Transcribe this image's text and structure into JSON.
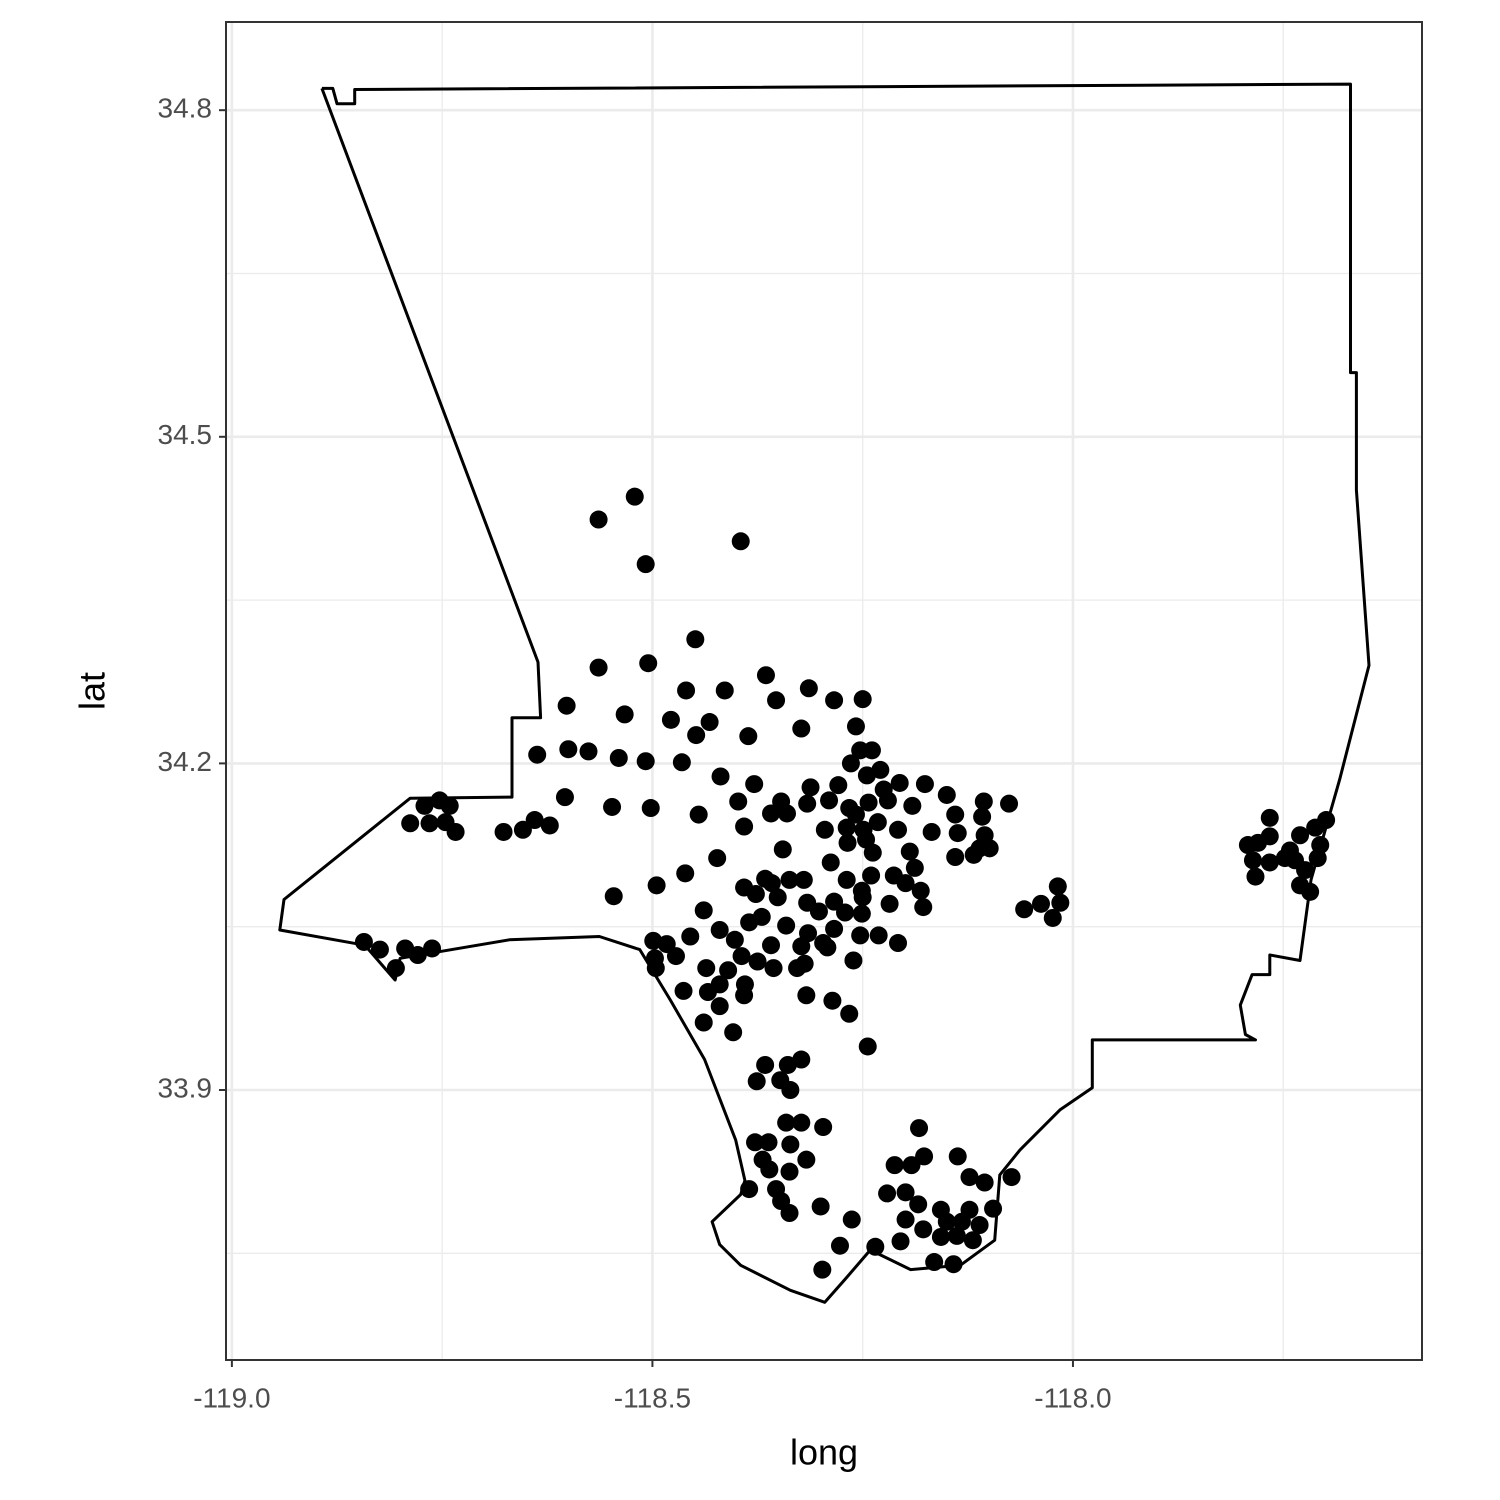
{
  "chart_data": {
    "type": "scatter",
    "x_label": "long",
    "y_label": "lat",
    "xlim": [
      -119.007,
      -117.585
    ],
    "ylim": [
      33.652,
      34.881
    ],
    "xticks": [
      {
        "value": -119.0,
        "label": "-119.0"
      },
      -118.5,
      {
        "value": -118.0,
        "label": "-118.0"
      }
    ],
    "yticks": [
      33.9,
      34.2,
      34.5,
      34.8
    ],
    "xminor": [
      -118.75,
      -118.25,
      -117.75
    ],
    "yminor": [
      33.75,
      34.05,
      34.35,
      34.65
    ],
    "grid": true,
    "color": "#000000",
    "outline_color": "#000000",
    "outline": {
      "x": [
        -118.893,
        -118.88,
        -118.875,
        -118.854,
        -118.854,
        -117.67,
        -117.67,
        -117.663,
        -117.663,
        -117.648,
        -117.683,
        -117.717,
        -117.73,
        -117.766,
        -117.766,
        -117.787,
        -117.801,
        -117.795,
        -117.783,
        -117.977,
        -117.977,
        -118.015,
        -118.063,
        -118.087,
        -118.093,
        -118.134,
        -118.193,
        -118.241,
        -118.271,
        -118.295,
        -118.336,
        -118.395,
        -118.42,
        -118.429,
        -118.395,
        -118.39,
        -118.401,
        -118.438,
        -118.479,
        -118.515,
        -118.563,
        -118.67,
        -118.8,
        -118.806,
        -118.842,
        -118.943,
        -118.938,
        -118.788,
        -118.667,
        -118.667,
        -118.633,
        -118.636,
        -118.893
      ],
      "y": [
        34.82,
        34.82,
        34.806,
        34.806,
        34.819,
        34.824,
        34.559,
        34.559,
        34.451,
        34.29,
        34.185,
        34.093,
        34.019,
        34.024,
        34.006,
        34.006,
        33.978,
        33.951,
        33.946,
        33.946,
        33.902,
        33.882,
        33.845,
        33.822,
        33.762,
        33.739,
        33.735,
        33.753,
        33.726,
        33.705,
        33.716,
        33.739,
        33.758,
        33.779,
        33.804,
        33.817,
        33.854,
        33.928,
        33.983,
        34.029,
        34.041,
        34.038,
        34.021,
        34.001,
        34.033,
        34.047,
        34.075,
        34.168,
        34.169,
        34.242,
        34.242,
        34.293,
        34.82
      ]
    },
    "x": [
      -118.521,
      -118.564,
      -118.508,
      -118.395,
      -118.449,
      -118.564,
      -118.505,
      -118.365,
      -118.46,
      -118.414,
      -118.314,
      -118.353,
      -118.284,
      -118.25,
      -118.602,
      -118.533,
      -118.478,
      -118.432,
      -118.323,
      -118.258,
      -118.448,
      -118.386,
      -118.6,
      -118.576,
      -118.637,
      -118.54,
      -118.508,
      -118.465,
      -118.253,
      -118.239,
      -118.264,
      -118.229,
      -118.419,
      -118.379,
      -118.312,
      -118.279,
      -118.206,
      -118.176,
      -118.604,
      -118.398,
      -118.347,
      -118.316,
      -118.29,
      -118.266,
      -118.243,
      -118.22,
      -118.548,
      -118.502,
      -118.15,
      -118.106,
      -118.076,
      -118.14,
      -118.445,
      -118.359,
      -118.34,
      -118.191,
      -118.108,
      -118.64,
      -118.677,
      -118.654,
      -118.622,
      -118.391,
      -118.295,
      -118.269,
      -118.249,
      -118.232,
      -118.208,
      -118.168,
      -118.137,
      -118.105,
      -118.268,
      -118.246,
      -118.345,
      -118.111,
      -118.14,
      -118.118,
      -118.099,
      -118.238,
      -118.194,
      -118.423,
      -118.288,
      -118.461,
      -118.24,
      -118.188,
      -118.366,
      -118.32,
      -118.269,
      -118.213,
      -118.495,
      -118.391,
      -118.358,
      -118.337,
      -118.251,
      -118.199,
      -118.181,
      -118.546,
      -118.377,
      -118.351,
      -118.018,
      -118.316,
      -118.284,
      -118.25,
      -118.218,
      -118.178,
      -118.058,
      -118.038,
      -118.015,
      -118.024,
      -118.439,
      -118.37,
      -118.302,
      -118.271,
      -118.251,
      -118.42,
      -118.385,
      -118.341,
      -118.315,
      -118.284,
      -118.253,
      -118.231,
      -118.208,
      -118.455,
      -118.499,
      -118.483,
      -118.402,
      -118.359,
      -118.323,
      -118.297,
      -118.497,
      -118.472,
      -118.394,
      -118.375,
      -118.319,
      -118.292,
      -118.261,
      -118.496,
      -118.436,
      -118.41,
      -118.356,
      -118.328,
      -118.42,
      -118.39,
      -118.463,
      -118.434,
      -118.391,
      -118.317,
      -118.286,
      -118.42,
      -118.266,
      -118.439,
      -118.404,
      -118.244,
      -118.366,
      -118.339,
      -118.323,
      -118.376,
      -118.348,
      -118.336,
      -118.341,
      -118.323,
      -118.297,
      -118.183,
      -118.378,
      -118.362,
      -118.336,
      -118.137,
      -118.177,
      -118.369,
      -118.317,
      -118.212,
      -118.192,
      -118.361,
      -118.337,
      -118.123,
      -118.073,
      -118.105,
      -118.353,
      -118.385,
      -118.221,
      -118.199,
      -118.347,
      -118.3,
      -118.337,
      -118.157,
      -118.123,
      -118.095,
      -118.184,
      -118.263,
      -118.199,
      -118.15,
      -118.132,
      -118.111,
      -118.178,
      -118.157,
      -118.138,
      -118.119,
      -118.205,
      -118.277,
      -118.235,
      -118.165,
      -118.142,
      -118.298,
      -118.788,
      -118.771,
      -118.753,
      -118.741,
      -118.765,
      -118.746,
      -118.734,
      -118.843,
      -118.824,
      -118.794,
      -118.779,
      -118.762,
      -118.805,
      -117.792,
      -117.78,
      -117.766,
      -117.786,
      -117.766,
      -117.783,
      -117.766,
      -117.742,
      -117.73,
      -117.712,
      -117.699,
      -117.724,
      -117.709,
      -117.73,
      -117.718,
      -117.748,
      -117.736,
      -117.706,
      -118.245,
      -118.225,
      -118.258
    ],
    "values": [
      34.445,
      34.424,
      34.383,
      34.404,
      34.314,
      34.288,
      34.292,
      34.281,
      34.267,
      34.267,
      34.269,
      34.258,
      34.258,
      34.259,
      34.253,
      34.245,
      34.24,
      34.238,
      34.232,
      34.234,
      34.226,
      34.225,
      34.213,
      34.211,
      34.208,
      34.205,
      34.202,
      34.201,
      34.212,
      34.212,
      34.2,
      34.194,
      34.188,
      34.181,
      34.178,
      34.18,
      34.182,
      34.181,
      34.169,
      34.165,
      34.165,
      34.163,
      34.166,
      34.159,
      34.164,
      34.166,
      34.16,
      34.159,
      34.171,
      34.165,
      34.163,
      34.153,
      34.153,
      34.154,
      34.154,
      34.161,
      34.151,
      34.148,
      34.137,
      34.139,
      34.143,
      34.142,
      34.139,
      34.141,
      34.139,
      34.146,
      34.139,
      34.137,
      34.136,
      34.134,
      34.127,
      34.13,
      34.121,
      34.122,
      34.114,
      34.116,
      34.122,
      34.118,
      34.119,
      34.113,
      34.109,
      34.099,
      34.097,
      34.104,
      34.094,
      34.093,
      34.093,
      34.097,
      34.088,
      34.086,
      34.09,
      34.093,
      34.083,
      34.09,
      34.083,
      34.078,
      34.08,
      34.077,
      34.087,
      34.072,
      34.073,
      34.077,
      34.071,
      34.068,
      34.066,
      34.071,
      34.072,
      34.058,
      34.065,
      34.059,
      34.064,
      34.063,
      34.062,
      34.047,
      34.054,
      34.051,
      34.044,
      34.048,
      34.042,
      34.042,
      34.035,
      34.041,
      34.037,
      34.034,
      34.038,
      34.033,
      34.032,
      34.035,
      34.021,
      34.023,
      34.023,
      34.018,
      34.016,
      34.031,
      34.019,
      34.012,
      34.012,
      34.01,
      34.012,
      34.012,
      33.997,
      33.997,
      33.991,
      33.99,
      33.987,
      33.987,
      33.982,
      33.977,
      33.97,
      33.962,
      33.953,
      33.94,
      33.923,
      33.923,
      33.928,
      33.908,
      33.909,
      33.9,
      33.87,
      33.87,
      33.866,
      33.865,
      33.852,
      33.852,
      33.85,
      33.839,
      33.839,
      33.836,
      33.836,
      33.831,
      33.831,
      33.827,
      33.825,
      33.82,
      33.82,
      33.815,
      33.809,
      33.809,
      33.805,
      33.806,
      33.798,
      33.793,
      33.787,
      33.79,
      33.79,
      33.791,
      33.795,
      33.781,
      33.781,
      33.779,
      33.779,
      33.776,
      33.772,
      33.765,
      33.766,
      33.762,
      33.761,
      33.757,
      33.756,
      33.742,
      33.74,
      33.735,
      34.145,
      34.161,
      34.166,
      34.161,
      34.145,
      34.146,
      34.137,
      34.036,
      34.029,
      34.03,
      34.024,
      34.03,
      34.012,
      34.125,
      34.127,
      34.15,
      34.111,
      34.133,
      34.096,
      34.109,
      34.12,
      34.134,
      34.141,
      34.148,
      34.102,
      34.113,
      34.088,
      34.082,
      34.113,
      34.111,
      34.125,
      34.189,
      34.176,
      34.153
    ]
  }
}
